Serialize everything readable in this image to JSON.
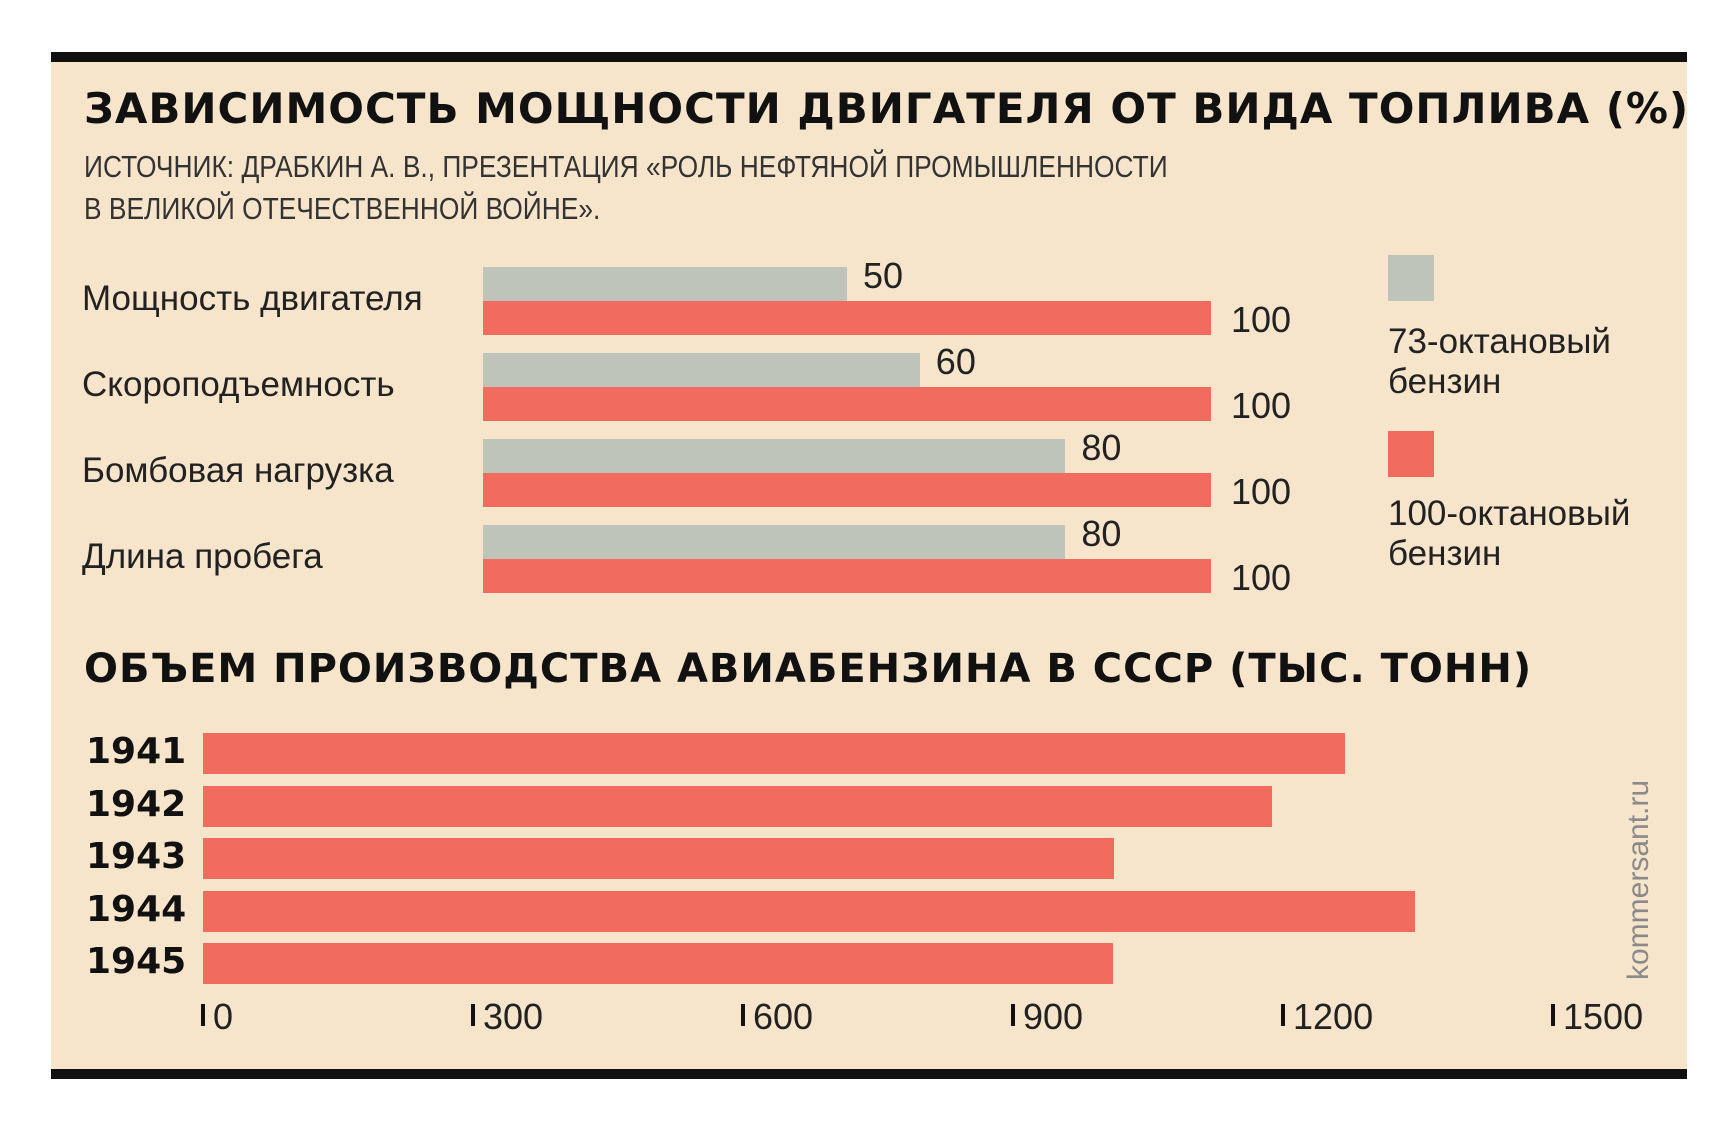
{
  "colors": {
    "background": "#f6e4cb",
    "gray_bar": "#bfc4ba",
    "red_bar": "#f16c5e",
    "border": "#111111"
  },
  "chart1": {
    "title": "ЗАВИСИМОСТЬ МОЩНОСТИ ДВИГАТЕЛЯ ОТ ВИДА ТОПЛИВА (%)",
    "subtitle_line1": "ИСТОЧНИК: ДРАБКИН А. В., ПРЕЗЕНТАЦИЯ «РОЛЬ НЕФТЯНОЙ ПРОМЫШЛЕННОСТИ",
    "subtitle_line2": "В ВЕЛИКОЙ ОТЕЧЕСТВЕННОЙ ВОЙНЕ».",
    "legend": [
      {
        "label": "73-октановый\nбензин",
        "color": "#bfc4ba"
      },
      {
        "label": "100-октановый\nбензин",
        "color": "#f16c5e"
      }
    ]
  },
  "chart2": {
    "title": "ОБЪЕМ ПРОИЗВОДСТВА АВИАБЕНЗИНА В СССР (ТЫС. ТОНН)",
    "ticks": [
      "0",
      "300",
      "600",
      "900",
      "1200",
      "1500"
    ]
  },
  "credit": "kommersant.ru",
  "chart_data": [
    {
      "type": "bar",
      "orientation": "horizontal",
      "title": "ЗАВИСИМОСТЬ МОЩНОСТИ ДВИГАТЕЛЯ ОТ ВИДА ТОПЛИВА (%)",
      "categories": [
        "Мощность двигателя",
        "Скороподъемность",
        "Бомбовая нагрузка",
        "Длина пробега"
      ],
      "series": [
        {
          "name": "73-октановый бензин",
          "values": [
            50,
            60,
            80,
            80
          ],
          "color": "#bfc4ba"
        },
        {
          "name": "100-октановый бензин",
          "values": [
            100,
            100,
            100,
            100
          ],
          "color": "#f16c5e"
        }
      ],
      "xlim": [
        0,
        100
      ],
      "grid": false,
      "legend_position": "right"
    },
    {
      "type": "bar",
      "orientation": "horizontal",
      "title": "ОБЪЕМ ПРОИЗВОДСТВА АВИАБЕНЗИНА В СССР (ТЫС. ТОНН)",
      "categories": [
        "1941",
        "1942",
        "1943",
        "1944",
        "1945"
      ],
      "values": [
        1269,
        1188,
        1012,
        1347,
        1011
      ],
      "color": "#f16c5e",
      "xlim": [
        0,
        1500
      ],
      "xticks": [
        0,
        300,
        600,
        900,
        1200,
        1500
      ],
      "grid": false
    }
  ]
}
